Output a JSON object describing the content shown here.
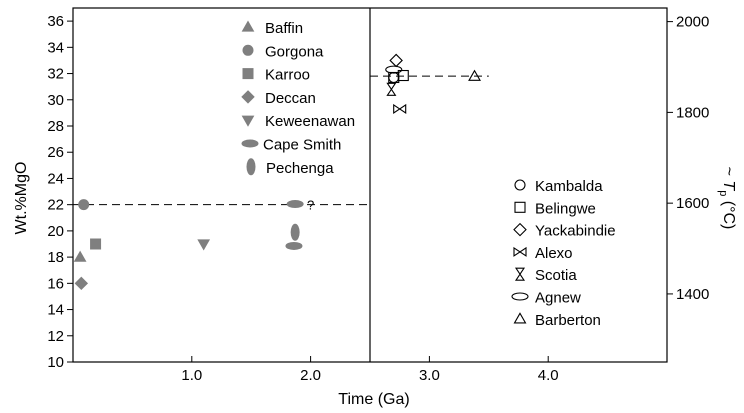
{
  "chart_data": {
    "type": "scatter",
    "xlabel": "Time (Ga)",
    "ylabel": "Wt.%MgO",
    "y2label": "~ T_p (°C)",
    "xlim": [
      0,
      5
    ],
    "ylim": [
      10,
      37
    ],
    "y2lim": [
      1250,
      2030
    ],
    "x_ticks": [
      1.0,
      2.0,
      3.0,
      4.0
    ],
    "x_tick_labels": [
      "1.0",
      "2.0",
      "3.0",
      "4.0"
    ],
    "y_ticks": [
      10,
      12,
      14,
      16,
      18,
      20,
      22,
      24,
      26,
      28,
      30,
      32,
      34,
      36
    ],
    "y2_ticks": [
      1400,
      1600,
      1800,
      2000
    ],
    "divider_x": 2.5,
    "grid": false,
    "legend_filled": {
      "placement": "top-center",
      "entries": [
        {
          "name": "Baffin",
          "marker": "triangle-up"
        },
        {
          "name": "Gorgona",
          "marker": "circle"
        },
        {
          "name": "Karroo",
          "marker": "square"
        },
        {
          "name": "Deccan",
          "marker": "diamond"
        },
        {
          "name": "Keweenawan",
          "marker": "triangle-down"
        },
        {
          "name": "Cape Smith",
          "marker": "ellipse-h"
        },
        {
          "name": "Pechenga",
          "marker": "ellipse-v"
        }
      ]
    },
    "legend_open": {
      "placement": "bottom-right",
      "entries": [
        {
          "name": "Kambalda",
          "marker": "circle"
        },
        {
          "name": "Belingwe",
          "marker": "square"
        },
        {
          "name": "Yackabindie",
          "marker": "diamond"
        },
        {
          "name": "Alexo",
          "marker": "bowtie"
        },
        {
          "name": "Scotia",
          "marker": "hourglass"
        },
        {
          "name": "Agnew",
          "marker": "ellipse-h"
        },
        {
          "name": "Barberton",
          "marker": "triangle-up"
        }
      ]
    },
    "series": [
      {
        "name": "Baffin",
        "marker": "triangle-up",
        "filled": true,
        "points": [
          [
            0.06,
            18
          ]
        ]
      },
      {
        "name": "Gorgona",
        "marker": "circle",
        "filled": true,
        "points": [
          [
            0.09,
            22
          ]
        ]
      },
      {
        "name": "Karroo",
        "marker": "square",
        "filled": true,
        "points": [
          [
            0.19,
            19
          ]
        ]
      },
      {
        "name": "Deccan",
        "marker": "diamond",
        "filled": true,
        "points": [
          [
            0.07,
            16
          ]
        ]
      },
      {
        "name": "Keweenawan",
        "marker": "triangle-down",
        "filled": true,
        "points": [
          [
            1.1,
            19
          ]
        ]
      },
      {
        "name": "Cape Smith",
        "marker": "ellipse-h",
        "filled": true,
        "points": [
          [
            1.87,
            22.05
          ]
        ]
      },
      {
        "name": "Pechenga",
        "marker": "ellipse-v",
        "filled": true,
        "points": [
          [
            1.87,
            19.9
          ]
        ]
      },
      {
        "name": "Pechenga",
        "marker": "ellipse-h",
        "filled": true,
        "points": [
          [
            1.86,
            18.85
          ]
        ]
      },
      {
        "name": "Kambalda",
        "marker": "circle",
        "filled": false,
        "points": [
          [
            2.7,
            31.7
          ]
        ]
      },
      {
        "name": "Belingwe",
        "marker": "square",
        "filled": false,
        "points": [
          [
            2.7,
            31.7
          ]
        ]
      },
      {
        "name": "Belingwe",
        "marker": "square",
        "filled": false,
        "points": [
          [
            2.78,
            31.85
          ]
        ]
      },
      {
        "name": "Yackabindie",
        "marker": "diamond",
        "filled": false,
        "points": [
          [
            2.72,
            33
          ]
        ]
      },
      {
        "name": "Alexo",
        "marker": "bowtie",
        "filled": false,
        "points": [
          [
            2.75,
            29.3
          ]
        ]
      },
      {
        "name": "Scotia",
        "marker": "hourglass",
        "filled": false,
        "points": [
          [
            2.68,
            30.8
          ]
        ]
      },
      {
        "name": "Agnew",
        "marker": "ellipse-h",
        "filled": false,
        "points": [
          [
            2.7,
            32.3
          ]
        ]
      },
      {
        "name": "Barberton",
        "marker": "triangle-up",
        "filled": false,
        "points": [
          [
            3.38,
            31.8
          ]
        ]
      }
    ],
    "reference_lines": [
      {
        "y": 22,
        "x_from": 0,
        "x_to": 2.5,
        "style": "dashed"
      },
      {
        "y": 31.8,
        "x_from": 2.5,
        "x_to": 3.5,
        "style": "dashed"
      }
    ],
    "annotations": [
      {
        "text": "?",
        "x": 1.97,
        "y": 22
      }
    ]
  }
}
